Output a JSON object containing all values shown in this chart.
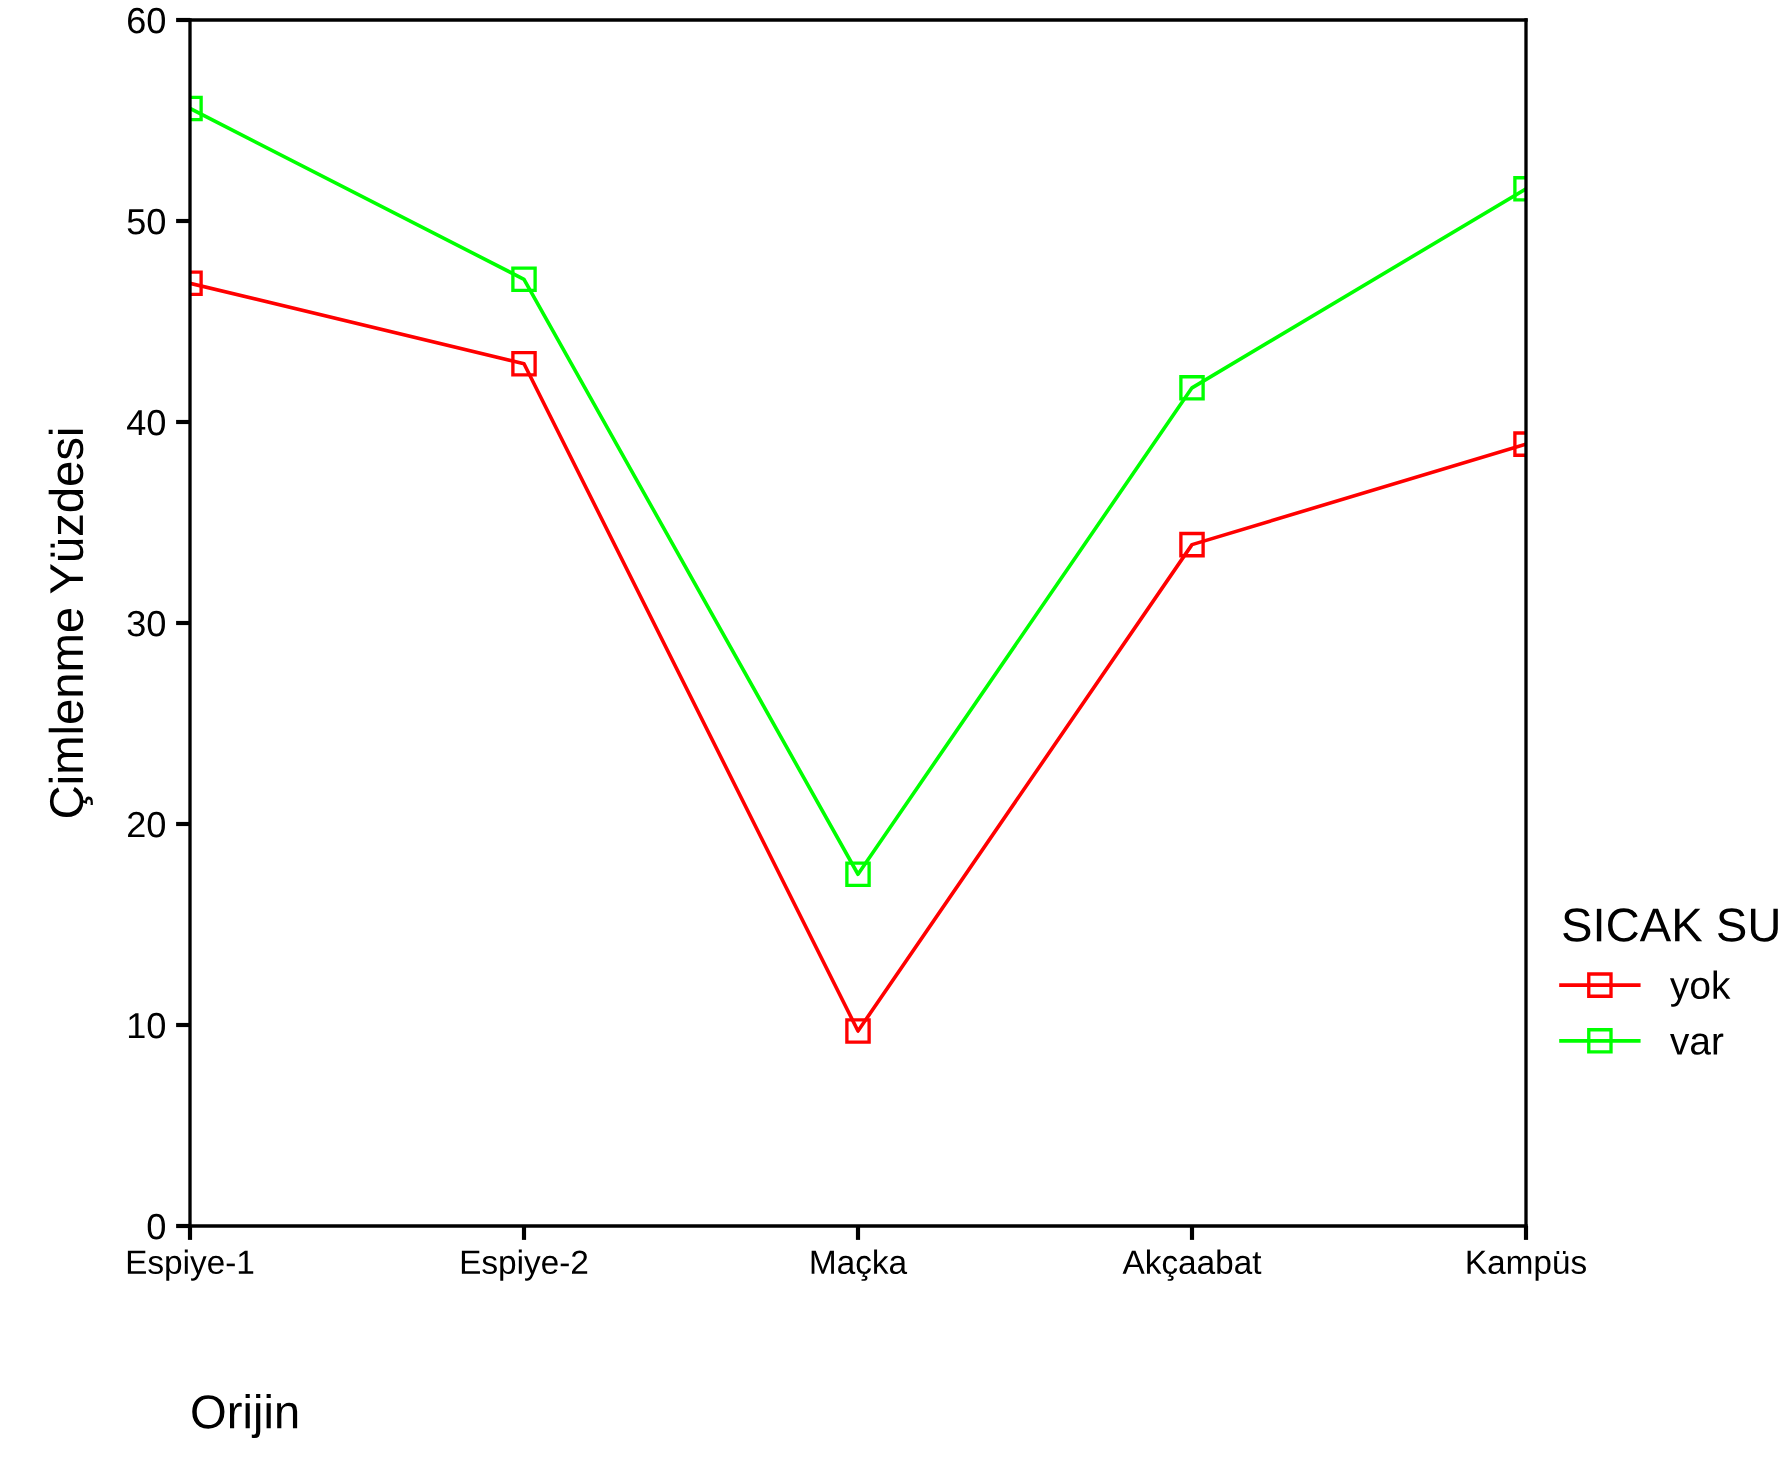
{
  "chart_data": {
    "type": "line",
    "xlabel": "Orijin",
    "ylabel": "Çimlenme Yüzdesi",
    "legend_title": "SICAK SU",
    "categories": [
      "Espiye-1",
      "Espiye-2",
      "Maçka",
      "Akçaabat",
      "Kampüs"
    ],
    "series": [
      {
        "name": "yok",
        "color": "#ff0000",
        "values": [
          46.9,
          42.9,
          9.7,
          33.9,
          38.9
        ]
      },
      {
        "name": "var",
        "color": "#00ff00",
        "values": [
          55.6,
          47.1,
          17.5,
          41.7,
          51.6
        ]
      }
    ],
    "ylim": [
      0,
      60
    ],
    "yticks": [
      0,
      10,
      20,
      30,
      40,
      50,
      60
    ],
    "grid": false,
    "legend": "right",
    "marker": "square",
    "line_style": "solid"
  }
}
